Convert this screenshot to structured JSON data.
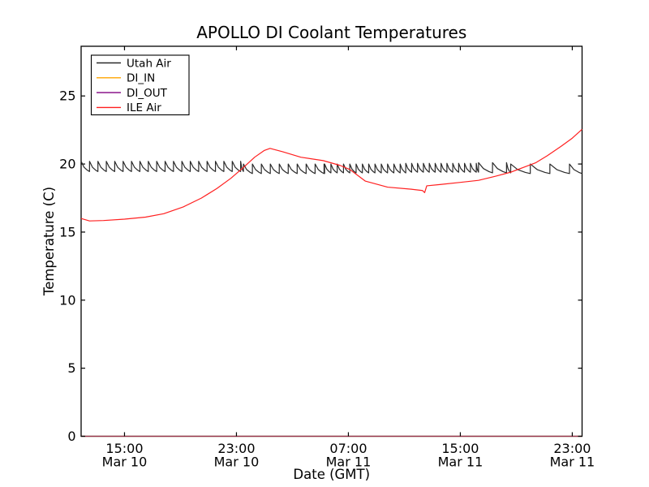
{
  "figure": {
    "title": "APOLLO DI Coolant Temperatures",
    "xlabel": "Date (GMT)",
    "ylabel": "Temperature (C)",
    "background_color": "#ffffff",
    "spine_color": "#000000"
  },
  "chart_data": {
    "type": "line",
    "title": "APOLLO DI Coolant Temperatures",
    "xlabel": "Date (GMT)",
    "ylabel": "Temperature (C)",
    "grid": false,
    "legend_position": "upper-left",
    "x_unit": "hours since Mar 10 00:00 GMT",
    "xlim": [
      11.9,
      47.7
    ],
    "ylim": [
      0,
      28.65
    ],
    "yticks": [
      {
        "value": 0,
        "label": "0"
      },
      {
        "value": 5,
        "label": "5"
      },
      {
        "value": 10,
        "label": "10"
      },
      {
        "value": 15,
        "label": "15"
      },
      {
        "value": 20,
        "label": "20"
      },
      {
        "value": 25,
        "label": "25"
      }
    ],
    "xticks": [
      {
        "hour": 15,
        "time": "15:00",
        "date": "Mar 10"
      },
      {
        "hour": 23,
        "time": "23:00",
        "date": "Mar 10"
      },
      {
        "hour": 31,
        "time": "07:00",
        "date": "Mar 11"
      },
      {
        "hour": 39,
        "time": "15:00",
        "date": "Mar 11"
      },
      {
        "hour": 47,
        "time": "23:00",
        "date": "Mar 11"
      }
    ],
    "series": [
      {
        "name": "Utah Air",
        "color": "#2a2a2a",
        "style": "sawtooth",
        "description": "cycling air temperature, fast rise / slow decay teeth",
        "segments": [
          {
            "from": 11.9,
            "to": 23.5,
            "period": 0.6,
            "peak": 20.2,
            "valley": 19.45
          },
          {
            "from": 23.5,
            "to": 29.3,
            "period": 0.64,
            "peak": 20.0,
            "valley": 19.3
          },
          {
            "from": 29.3,
            "to": 35.1,
            "period": 0.45,
            "peak": 20.0,
            "valley": 19.35
          },
          {
            "from": 35.1,
            "to": 40.3,
            "period": 0.42,
            "peak": 20.05,
            "valley": 19.4
          },
          {
            "from": 40.3,
            "to": 42.6,
            "period": 1.0,
            "peak": 20.1,
            "valley": 19.35
          },
          {
            "from": 42.6,
            "to": 47.7,
            "period": 1.4,
            "peak": 20.0,
            "valley": 19.3
          }
        ]
      },
      {
        "name": "DI_IN",
        "color": "#ffa500",
        "style": "flat",
        "value": 0.0,
        "opacity": 0.75
      },
      {
        "name": "DI_OUT",
        "color": "#800080",
        "style": "flat",
        "value": 0.0,
        "opacity": 0.6
      },
      {
        "name": "ILE Air",
        "color": "#ff2020",
        "style": "points",
        "points": [
          [
            11.9,
            16.0
          ],
          [
            12.5,
            15.82
          ],
          [
            13.5,
            15.85
          ],
          [
            15.0,
            15.95
          ],
          [
            16.5,
            16.1
          ],
          [
            17.8,
            16.35
          ],
          [
            19.2,
            16.85
          ],
          [
            20.5,
            17.5
          ],
          [
            21.6,
            18.2
          ],
          [
            22.6,
            18.95
          ],
          [
            23.5,
            19.75
          ],
          [
            24.3,
            20.5
          ],
          [
            25.0,
            21.0
          ],
          [
            25.4,
            21.15
          ],
          [
            26.3,
            20.9
          ],
          [
            27.6,
            20.5
          ],
          [
            29.2,
            20.25
          ],
          [
            30.4,
            19.9
          ],
          [
            31.1,
            19.6
          ],
          [
            32.2,
            18.75
          ],
          [
            33.8,
            18.3
          ],
          [
            35.5,
            18.15
          ],
          [
            36.3,
            18.05
          ],
          [
            36.45,
            17.9
          ],
          [
            36.6,
            18.4
          ],
          [
            37.6,
            18.5
          ],
          [
            39.0,
            18.65
          ],
          [
            40.3,
            18.8
          ],
          [
            41.5,
            19.1
          ],
          [
            42.6,
            19.4
          ],
          [
            43.5,
            19.75
          ],
          [
            44.4,
            20.1
          ],
          [
            45.2,
            20.6
          ],
          [
            46.2,
            21.3
          ],
          [
            47.0,
            21.9
          ],
          [
            47.7,
            22.55
          ]
        ]
      }
    ]
  }
}
